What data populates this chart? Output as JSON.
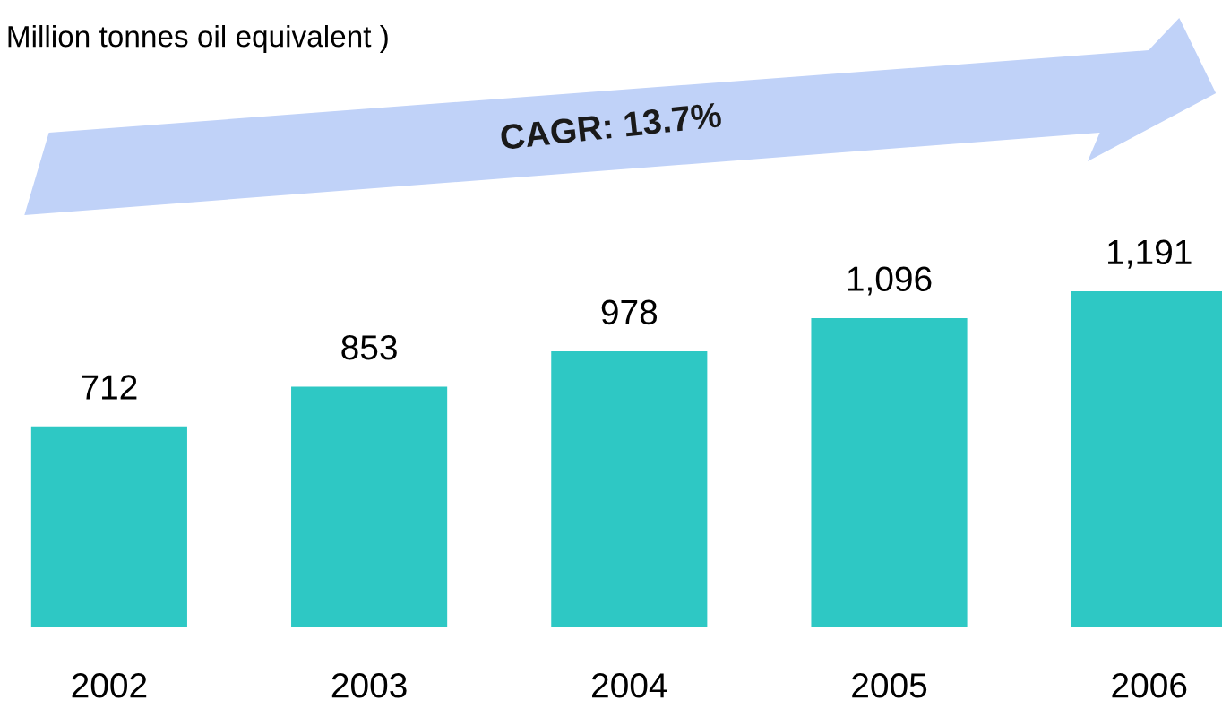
{
  "chart_data": {
    "type": "bar",
    "title": "Million tonnes oil equivalent )",
    "categories": [
      "2002",
      "2003",
      "2004",
      "2005",
      "2006"
    ],
    "values": [
      712,
      853,
      978,
      1096,
      1191
    ],
    "value_labels": [
      "712",
      "853",
      "978",
      "1,096",
      "1,191"
    ],
    "color": "#2ec8c4",
    "annotations": [
      "CAGR: 13.7%"
    ],
    "grid": false,
    "legend": false
  }
}
